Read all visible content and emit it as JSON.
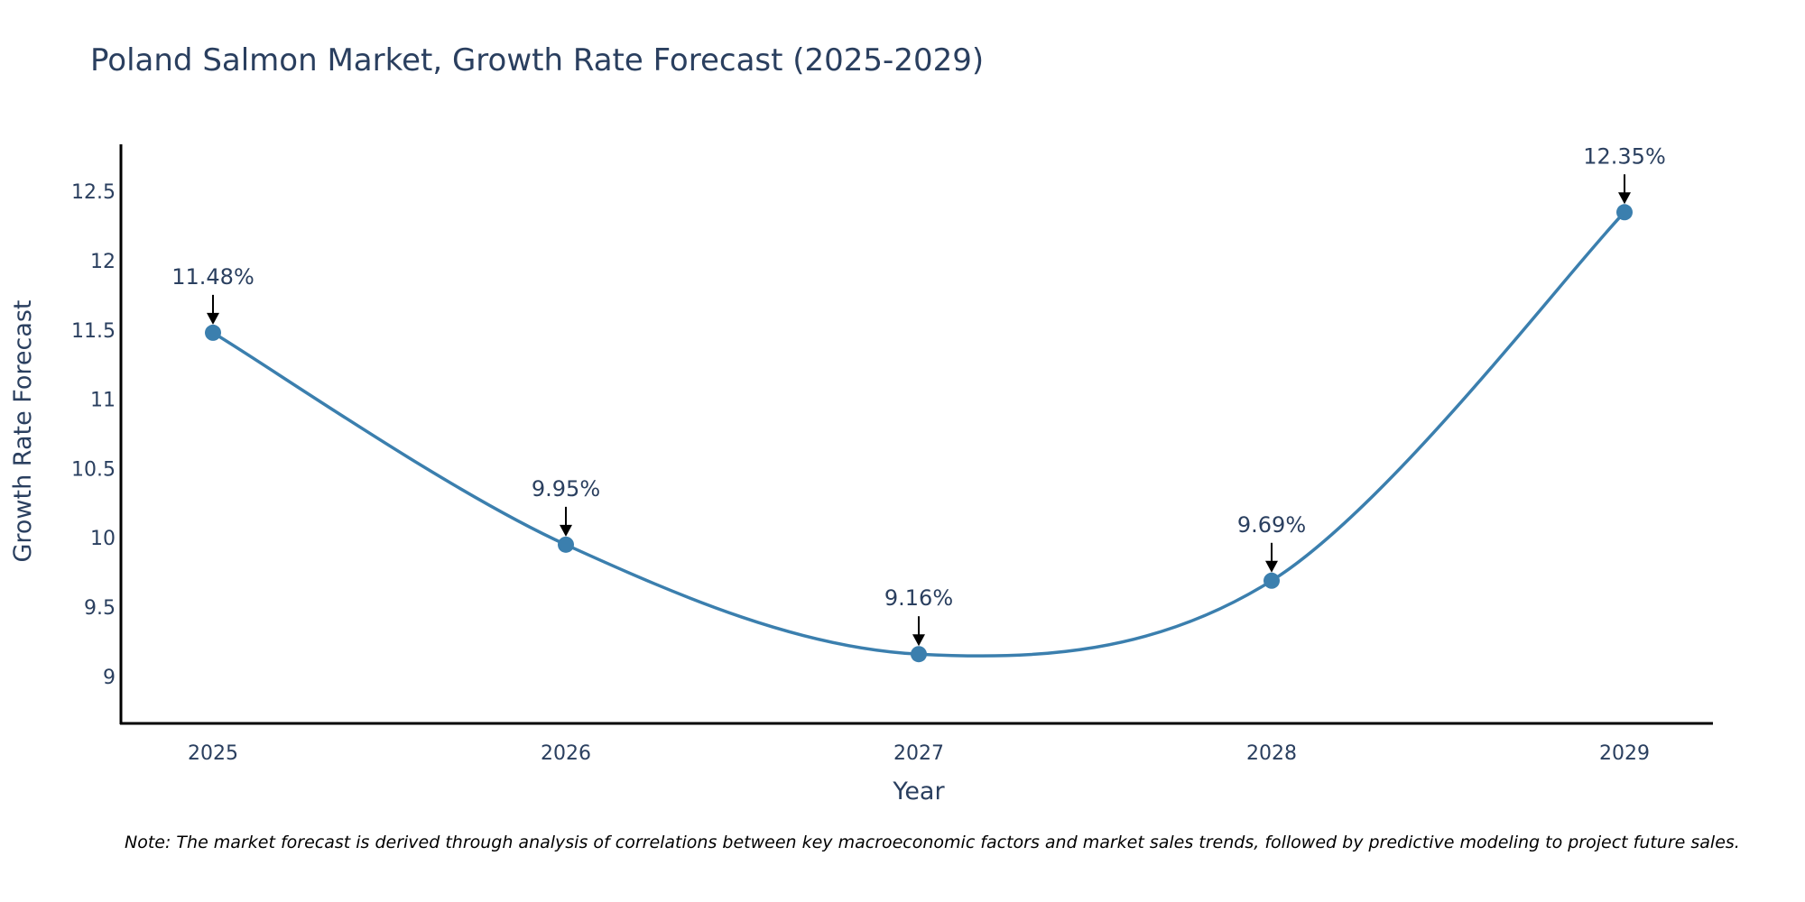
{
  "chart_data": {
    "type": "line",
    "title": "Poland Salmon Market, Growth Rate Forecast (2025-2029)",
    "xlabel": "Year",
    "ylabel": "Growth Rate Forecast",
    "categories": [
      "2025",
      "2026",
      "2027",
      "2028",
      "2029"
    ],
    "values": [
      11.48,
      9.95,
      9.16,
      9.69,
      12.35
    ],
    "annotations": [
      "11.48%",
      "9.95%",
      "9.16%",
      "9.69%",
      "12.35%"
    ],
    "y_ticks": [
      "9",
      "9.5",
      "10",
      "10.5",
      "11",
      "11.5",
      "12",
      "12.5"
    ],
    "y_tick_values": [
      9,
      9.5,
      10,
      10.5,
      11,
      11.5,
      12,
      12.5
    ],
    "ylim": [
      8.66,
      12.84
    ],
    "line_shape": "spline",
    "grid": false,
    "line_color": "#3b7fae",
    "marker_color": "#3b7fae",
    "arrow_color": "#000000",
    "axis_color": "#000000",
    "text_color": "#2a3f5f",
    "note": "Note: The market forecast is derived through analysis of correlations between key macroeconomic factors and market sales trends, followed by predictive modeling to project future sales."
  }
}
